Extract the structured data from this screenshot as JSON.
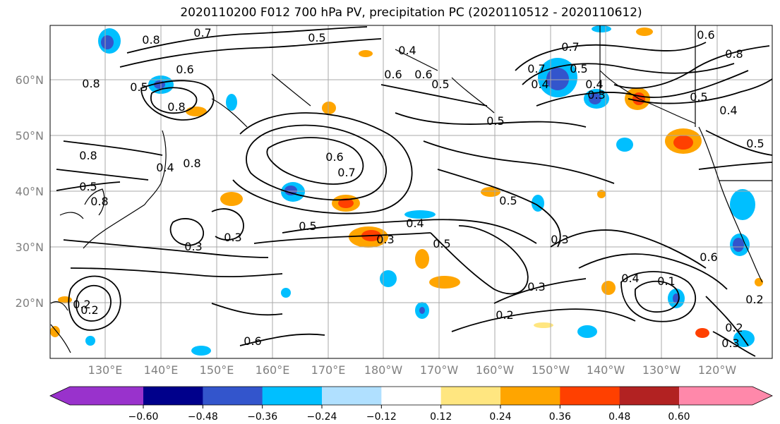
{
  "title": "2020110200 F012 700 hPa PV, precipitation PC (2020110512 - 2020110612)",
  "lat_labels": [
    "60°N",
    "50°N",
    "40°N",
    "30°N",
    "20°N"
  ],
  "lon_labels": [
    "130°E",
    "140°E",
    "150°E",
    "160°E",
    "170°E",
    "180°W",
    "170°W",
    "160°W",
    "150°W",
    "140°W",
    "130°W",
    "120°W"
  ],
  "contour_labels": [
    "0.7",
    "0.8",
    "0.5",
    "0.6",
    "0.4",
    "0.6",
    "0.5",
    "0.8",
    "0.6",
    "0.5",
    "0.8",
    "0.5",
    "0.7",
    "0.8",
    "0.6",
    "0.5",
    "0.4",
    "0.5",
    "0.6",
    "0.7",
    "0.8",
    "0.5",
    "0.4",
    "0.8",
    "0.5",
    "0.3",
    "0.8",
    "0.4",
    "0.3",
    "0.3",
    "0.5",
    "0.3",
    "0.5",
    "0.6",
    "0.7",
    "0.4",
    "0.5",
    "0.3",
    "0.2",
    "0.4",
    "0.1",
    "0.3",
    "0.2",
    "0.2",
    "0.6",
    "0.4",
    "0.2",
    "0.2",
    "0.3"
  ],
  "colorbar": {
    "colors": [
      "#9932cc",
      "#00008b",
      "#3355cc",
      "#00bfff",
      "#b0e0ff",
      "#ffffff",
      "#ffe680",
      "#ffa500",
      "#ff4000",
      "#b22222",
      "#ff88aa"
    ],
    "tick_labels": [
      "−0.60",
      "−0.48",
      "−0.36",
      "−0.24",
      "−0.12",
      "0.12",
      "0.24",
      "0.36",
      "0.48",
      "0.60"
    ]
  }
}
